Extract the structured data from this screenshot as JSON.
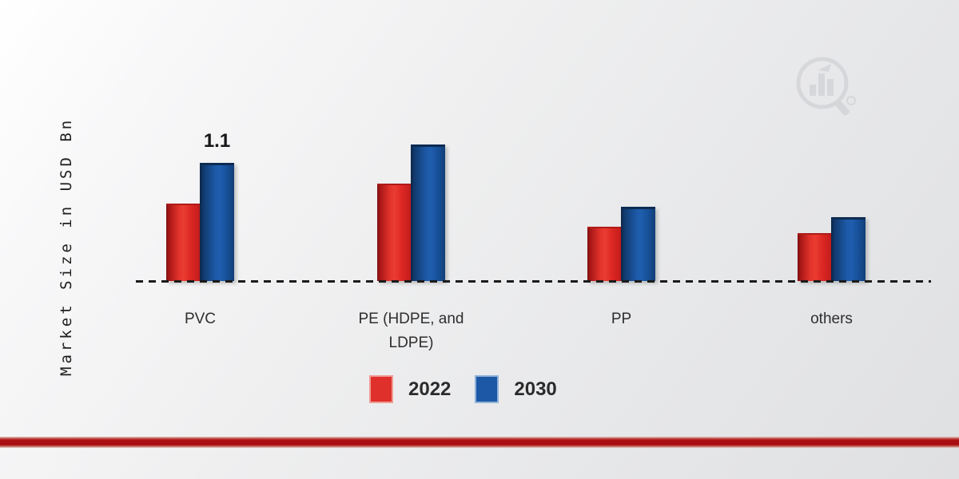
{
  "chart_data": {
    "type": "bar",
    "title": "",
    "xlabel": "",
    "ylabel": "Market Size in USD Bn",
    "categories": [
      "PVC",
      "PE (HDPE, and LDPE)",
      "PP",
      "others"
    ],
    "series": [
      {
        "name": "2022",
        "color": "#e02b26",
        "values": [
          0.72,
          0.91,
          0.5,
          0.44
        ]
      },
      {
        "name": "2030",
        "color": "#1b57a3",
        "values": [
          1.1,
          1.27,
          0.68,
          0.58
        ]
      }
    ],
    "data_labels": [
      {
        "series": "2030",
        "category": "PVC",
        "text": "1.1"
      }
    ],
    "ylim": [
      0,
      1.45
    ],
    "grid": false,
    "axis_line_style": "dashed",
    "legend_position": "bottom"
  },
  "legend": {
    "items": [
      {
        "label": "2022",
        "color": "#e0302c",
        "border": "#ef9b93"
      },
      {
        "label": "2030",
        "color": "#1c58a5",
        "border": "#8fb2d8"
      }
    ]
  },
  "watermark": {
    "name": "magnifier-bar-chart-logo",
    "color": "#8a8f94"
  },
  "footer": {
    "divider_color": "#a80e12"
  }
}
